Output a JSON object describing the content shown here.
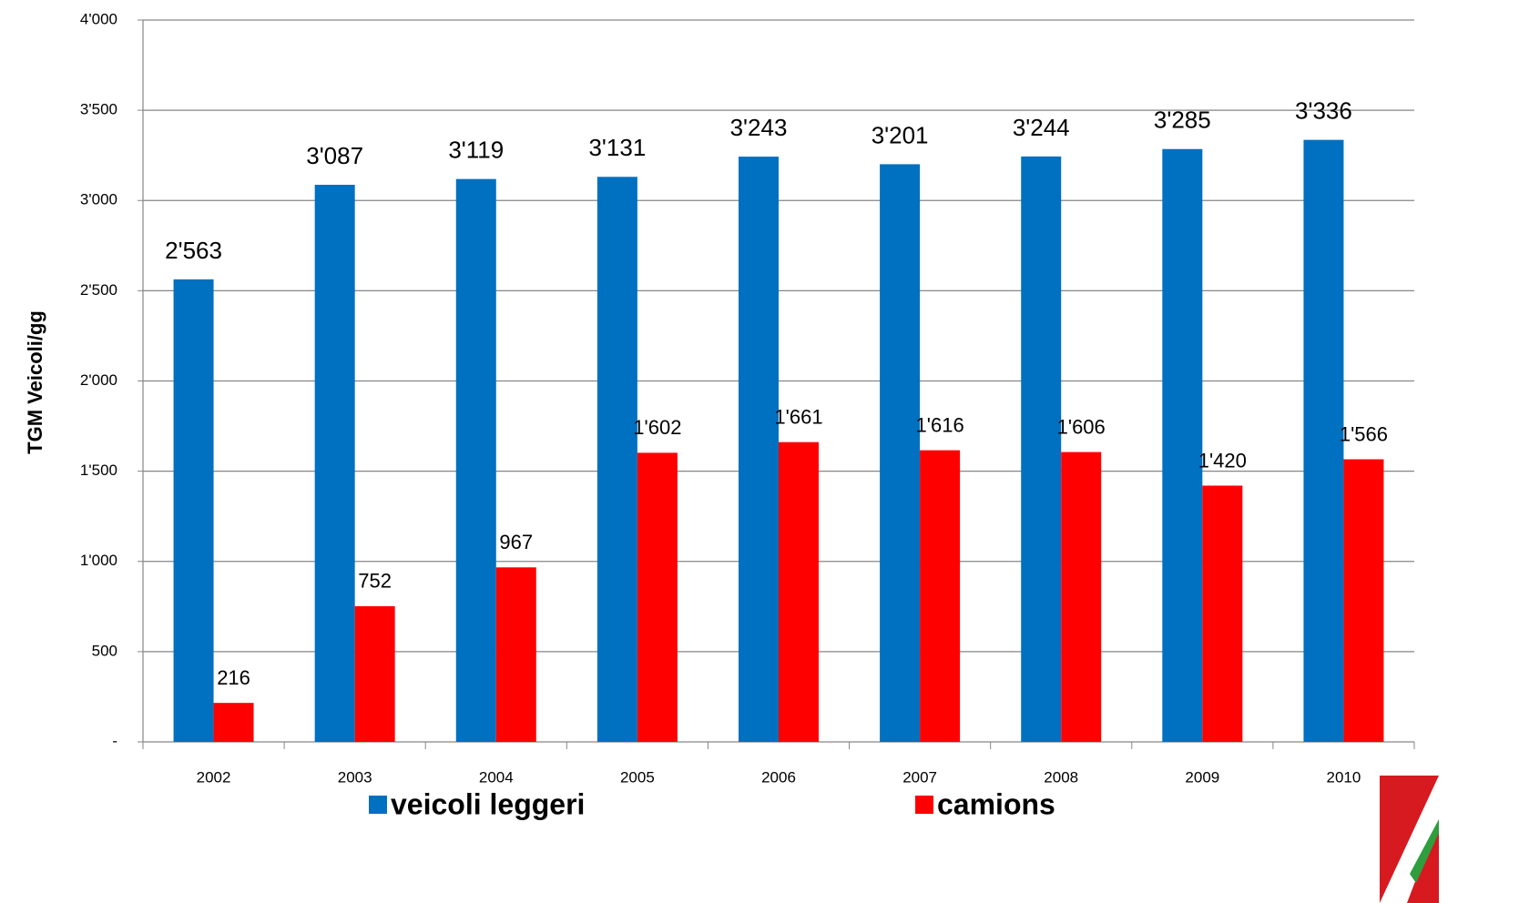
{
  "chart_data": {
    "type": "bar",
    "y_label": "TGM Veicoli/gg",
    "categories": [
      "2002",
      "2003",
      "2004",
      "2005",
      "2006",
      "2007",
      "2008",
      "2009",
      "2010"
    ],
    "series": [
      {
        "name": "veicoli leggeri",
        "color": "#0070c0",
        "values": [
          2563,
          3087,
          3119,
          3131,
          3243,
          3201,
          3244,
          3285,
          3336
        ],
        "value_labels": [
          "2'563",
          "3'087",
          "3'119",
          "3'131",
          "3'243",
          "3'201",
          "3'244",
          "3'285",
          "3'336"
        ]
      },
      {
        "name": "camions",
        "color": "#ff0000",
        "values": [
          216,
          752,
          967,
          1602,
          1661,
          1616,
          1606,
          1420,
          1566
        ],
        "value_labels": [
          "216",
          "752",
          "967",
          "1'602",
          "1'661",
          "1'616",
          "1'606",
          "1'420",
          "1'566"
        ]
      }
    ],
    "ylim": [
      0,
      4000
    ],
    "yticks": [
      {
        "value": 0,
        "label": "-"
      },
      500,
      {
        "value": 1000,
        "label": "1'000"
      },
      {
        "value": 1500,
        "label": "1'500"
      },
      {
        "value": 2000,
        "label": "2'000"
      },
      {
        "value": 2500,
        "label": "2'500"
      },
      {
        "value": 3000,
        "label": "3'000"
      },
      {
        "value": 3500,
        "label": "3'500"
      },
      {
        "value": 4000,
        "label": "4'000"
      }
    ],
    "grid": true
  }
}
